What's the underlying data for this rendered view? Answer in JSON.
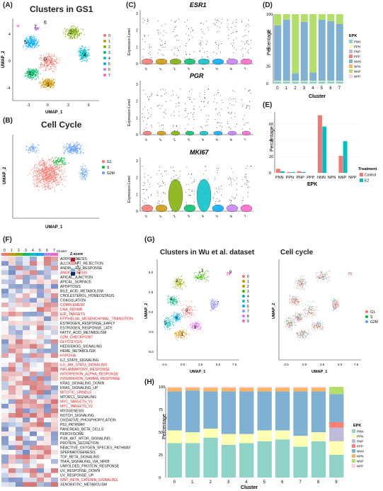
{
  "panels": {
    "A": {
      "label": "(A)",
      "title": "Clusters in GS1",
      "xlabel": "UMAP_1",
      "ylabel": "UMAP_2",
      "xticks": [
        "-3",
        "0",
        "3",
        "6"
      ],
      "yticks": [
        "4",
        "0",
        "-4"
      ],
      "legend": [
        "0",
        "1",
        "2",
        "3",
        "4",
        "5",
        "6",
        "7"
      ]
    },
    "B": {
      "label": "(B)",
      "title": "Cell Cycle",
      "xlabel": "UMAP_1",
      "ylabel": "UMAP_2",
      "legend": [
        "G1",
        "S",
        "G2M"
      ]
    },
    "C": {
      "label": "(C)",
      "genes": [
        "ESR1",
        "PGR",
        "MKI67"
      ],
      "ylabel": "Expression Level",
      "clusters": [
        "0",
        "1",
        "2",
        "3",
        "4",
        "5",
        "6",
        "7"
      ],
      "yticks": {
        "ESR1": [
          "0",
          "1",
          "2",
          "3"
        ],
        "PGR": [
          "0",
          "1",
          "2",
          "3"
        ],
        "MKI67": [
          "0",
          "1",
          "2",
          "3"
        ]
      }
    },
    "D": {
      "label": "(D)",
      "xlabel": "Cluster",
      "ylabel": "Percentage",
      "legend_title": "EPK",
      "legend": [
        "PNN",
        "PPN",
        "PNP",
        "PPP",
        "NNN",
        "NPN",
        "NNP",
        "NPP"
      ],
      "yticks": [
        "0",
        "25",
        "50",
        "75",
        "100"
      ]
    },
    "E": {
      "label": "(E)",
      "xlabel": "EPK",
      "ylabel": "Percentage",
      "legend_title": "Treatment",
      "legend": [
        "Control",
        "E2"
      ],
      "yticks": [
        "0",
        "20",
        "40",
        "60"
      ]
    },
    "F": {
      "label": "(F)",
      "legend_title": "Z-score",
      "scale": [
        "4",
        "2",
        "0",
        "-2",
        "-4"
      ],
      "col_header": "Cluster",
      "cols": [
        "0",
        "1",
        "2",
        "3",
        "4",
        "5",
        "6",
        "7"
      ]
    },
    "G": {
      "label": "(G)",
      "title_left": "Clusters in Wu et al. dataset",
      "title_right": "Cell cycle",
      "xlabel": "UMAP_1",
      "ylabel": "UMAP_2",
      "xticks": [
        "-2.5",
        "0.0",
        "2.5",
        "5.0",
        "7.5"
      ],
      "yticks": [
        "5.0",
        "2.5",
        "0.0",
        "-2.5",
        "-5.0"
      ],
      "legend_left": [
        "0",
        "1",
        "2",
        "3",
        "4",
        "5",
        "6",
        "7",
        "8",
        "9"
      ],
      "legend_right": [
        "G1",
        "S",
        "G2M"
      ]
    },
    "H": {
      "label": "(H)",
      "xlabel": "Cluster",
      "ylabel": "Percentage",
      "legend_title": "EPK",
      "legend": [
        "PNN",
        "PPN",
        "PNP",
        "PPP",
        "NNN",
        "NPN",
        "NNP",
        "NPP"
      ],
      "yticks": [
        "0",
        "25",
        "50",
        "75",
        "100"
      ]
    }
  },
  "colors": {
    "clusters8": [
      "#F8766D",
      "#CD9600",
      "#7CAE00",
      "#00BE67",
      "#00BFC4",
      "#00A9FF",
      "#C77CFF",
      "#FF61CC"
    ],
    "clusters10": [
      "#F8766D",
      "#D89000",
      "#A3A500",
      "#39B600",
      "#00BF7D",
      "#00BFC4",
      "#00B0F6",
      "#9590FF",
      "#E76BF3",
      "#FF62BC"
    ],
    "cellcycle": [
      "#F8766D",
      "#00BA38",
      "#619CFF"
    ],
    "epk": [
      "#8FD3C8",
      "#FFFFB3",
      "#BEBADA",
      "#FB8072",
      "#80B1D3",
      "#FDB462",
      "#B3DE69",
      "#FCCDE5"
    ],
    "treatment": [
      "#F8766D",
      "#00BFC4"
    ]
  },
  "chart_data": [
    {
      "type": "bar",
      "id": "D",
      "stacked": true,
      "categories": [
        "0",
        "1",
        "2",
        "3",
        "4",
        "5",
        "6",
        "7"
      ],
      "series": [
        {
          "name": "PNN",
          "values": [
            3,
            3,
            3,
            3,
            3,
            3,
            3,
            3
          ]
        },
        {
          "name": "PPN",
          "values": [
            1,
            1,
            1,
            1,
            1,
            1,
            1,
            1
          ]
        },
        {
          "name": "PNP",
          "values": [
            0,
            0,
            0,
            0,
            0,
            0,
            0,
            0
          ]
        },
        {
          "name": "PPP",
          "values": [
            0,
            0,
            0,
            0,
            0,
            0,
            0,
            0
          ]
        },
        {
          "name": "NNN",
          "values": [
            80,
            88,
            11,
            85,
            12,
            88,
            86,
            82
          ]
        },
        {
          "name": "NPN",
          "values": [
            0,
            0,
            0,
            0,
            0,
            0,
            0,
            0
          ]
        },
        {
          "name": "NNP",
          "values": [
            16,
            8,
            85,
            11,
            84,
            8,
            10,
            14
          ]
        },
        {
          "name": "NPP",
          "values": [
            0,
            0,
            0,
            0,
            0,
            0,
            0,
            0
          ]
        }
      ],
      "ylim": [
        0,
        100
      ],
      "xlabel": "Cluster",
      "ylabel": "Percentage"
    },
    {
      "type": "bar",
      "id": "E",
      "categories": [
        "PNN",
        "PPN",
        "PNP",
        "PPP",
        "NNN",
        "NPN",
        "NNP",
        "NPP"
      ],
      "series": [
        {
          "name": "Control",
          "values": [
            5,
            1,
            2,
            0,
            71,
            0,
            21,
            0
          ]
        },
        {
          "name": "E2",
          "values": [
            2,
            1,
            1,
            0,
            57,
            0,
            39,
            0
          ]
        }
      ],
      "ylim": [
        0,
        75
      ],
      "xlabel": "EPK",
      "ylabel": "Percentage"
    },
    {
      "type": "bar",
      "id": "H",
      "stacked": true,
      "categories": [
        "0",
        "1",
        "2",
        "3",
        "4",
        "5",
        "6",
        "7",
        "8",
        "9"
      ],
      "series": [
        {
          "name": "PNN",
          "values": [
            38,
            38,
            44,
            36,
            38,
            40,
            42,
            34,
            40,
            25
          ]
        },
        {
          "name": "PPN",
          "values": [
            14,
            12,
            10,
            12,
            10,
            12,
            10,
            12,
            10,
            15
          ]
        },
        {
          "name": "PNP",
          "values": [
            0,
            0,
            0,
            0,
            0,
            0,
            0,
            0,
            0,
            15
          ]
        },
        {
          "name": "PPP",
          "values": [
            0,
            0,
            0,
            0,
            0,
            0,
            0,
            0,
            0,
            6
          ]
        },
        {
          "name": "NNN",
          "values": [
            43,
            46,
            41,
            47,
            47,
            43,
            43,
            49,
            45,
            31
          ]
        },
        {
          "name": "NPN",
          "values": [
            4,
            3,
            4,
            4,
            4,
            4,
            4,
            4,
            4,
            0
          ]
        },
        {
          "name": "NNP",
          "values": [
            0,
            0,
            0,
            0,
            0,
            0,
            0,
            0,
            0,
            8
          ]
        },
        {
          "name": "NPP",
          "values": [
            1,
            1,
            1,
            1,
            1,
            1,
            1,
            1,
            1,
            0
          ]
        }
      ],
      "ylim": [
        0,
        100
      ],
      "xlabel": "Cluster",
      "ylabel": "Percentage"
    },
    {
      "type": "heatmap",
      "id": "F",
      "rows": [
        "ADIPOGENESIS",
        "ALLOGRAFT_REJECTION",
        "ANDROGEN_RESPONSE",
        "ANGIOGENESIS",
        "APICAL_JUNCTION",
        "APICAL_SURFACE",
        "APOPTOSIS",
        "BILE_ACID_METABOLISM",
        "CHOLESTEROL_HOMEOSTASIS",
        "COAGULATION",
        "COMPLEMENT",
        "DNA_REPAIR",
        "E2F_TARGETS",
        "EPITHELIAL_MESENCHYMAL_TRANSITION",
        "ESTROGEN_RESPONSE_EARLY",
        "ESTROGEN_RESPONSE_LATE",
        "FATTY_ACID_METABOLISM",
        "G2M_CHECKPOINT",
        "GLYCOLYSIS",
        "HEDGEHOG_SIGNALING",
        "HEME_METABOLISM",
        "HYPOXIA",
        "IL2_STAT5_SIGNALING",
        "IL6_JAK_STAT3_SIGNALING",
        "INFLAMMATORY_RESPONSE",
        "INTERFERON_ALPHA_RESPONSE",
        "INTERFERON_GAMMA_RESPONSE",
        "KRAS_SIGNALING_DOWN",
        "KRAS_SIGNALING_UP",
        "MITOTIC_SPINDLE",
        "MTORC1_SIGNALING",
        "MYC_TARGETS_V1",
        "MYC_TARGETS_V2",
        "MYOGENESIS",
        "NOTCH_SIGNALING",
        "OXIDATIVE_PHOSPHORYLATION",
        "P53_PATHWAY",
        "PANCREAS_BETA_CELLS",
        "PEROXISOME",
        "PI3K_AKT_MTOR_SIGNALING",
        "PROTEIN_SECRETION",
        "REACTIVE_OXYGEN_SPECIES_PATHWAY",
        "SPERMATOGENESIS",
        "TGF_BETA_SIGNALING",
        "TNFA_SIGNALING_VIA_NFKB",
        "UNFOLDED_PROTEIN_RESPONSE",
        "UV_RESPONSE_DOWN",
        "UV_RESPONSE_UP",
        "WNT_BETA_CATENIN_SIGNALING",
        "XENOBIOTIC_METABOLISM"
      ],
      "highlighted": [
        "ANGIOGENESIS",
        "COMPLEMENT",
        "DNA_REPAIR",
        "E2F_TARGETS",
        "EPITHELIAL_MESENCHYMAL_TRANSITION",
        "G2M_CHECKPOINT",
        "GLYCOLYSIS",
        "HYPOXIA",
        "IL6_JAK_STAT3_SIGNALING",
        "INFLAMMATORY_RESPONSE",
        "INTERFERON_ALPHA_RESPONSE",
        "INTERFERON_GAMMA_RESPONSE",
        "MITOTIC_SPINDLE",
        "MYC_TARGETS_V1",
        "MYC_TARGETS_V2",
        "WNT_BETA_CATENIN_SIGNALING"
      ],
      "cols": [
        "0",
        "1",
        "2",
        "3",
        "4",
        "5",
        "6",
        "7"
      ]
    }
  ]
}
